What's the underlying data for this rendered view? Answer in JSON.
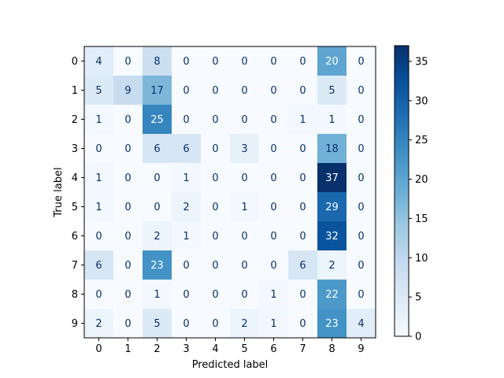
{
  "chart_data": {
    "type": "heatmap",
    "title": "",
    "xlabel": "Predicted label",
    "ylabel": "True label",
    "x_categories": [
      "0",
      "1",
      "2",
      "3",
      "4",
      "5",
      "6",
      "7",
      "8",
      "9"
    ],
    "y_categories": [
      "0",
      "1",
      "2",
      "3",
      "4",
      "5",
      "6",
      "7",
      "8",
      "9"
    ],
    "values": [
      [
        4,
        0,
        8,
        0,
        0,
        0,
        0,
        0,
        20,
        0
      ],
      [
        5,
        9,
        17,
        0,
        0,
        0,
        0,
        0,
        5,
        0
      ],
      [
        1,
        0,
        25,
        0,
        0,
        0,
        0,
        1,
        1,
        0
      ],
      [
        0,
        0,
        6,
        6,
        0,
        3,
        0,
        0,
        18,
        0
      ],
      [
        1,
        0,
        0,
        1,
        0,
        0,
        0,
        0,
        37,
        0
      ],
      [
        1,
        0,
        0,
        2,
        0,
        1,
        0,
        0,
        29,
        0
      ],
      [
        0,
        0,
        2,
        1,
        0,
        0,
        0,
        0,
        32,
        0
      ],
      [
        6,
        0,
        23,
        0,
        0,
        0,
        0,
        6,
        2,
        0
      ],
      [
        0,
        0,
        1,
        0,
        0,
        0,
        1,
        0,
        22,
        0
      ],
      [
        2,
        0,
        5,
        0,
        0,
        2,
        1,
        0,
        23,
        4
      ]
    ],
    "colormap": "Blues",
    "vmin": 0,
    "vmax": 37,
    "colorbar_ticks": [
      0,
      5,
      10,
      15,
      20,
      25,
      30,
      35
    ],
    "grid": false,
    "colorbar_placement": "right",
    "text_color_light": "#ffffff",
    "text_color_dark": "#08306b"
  }
}
